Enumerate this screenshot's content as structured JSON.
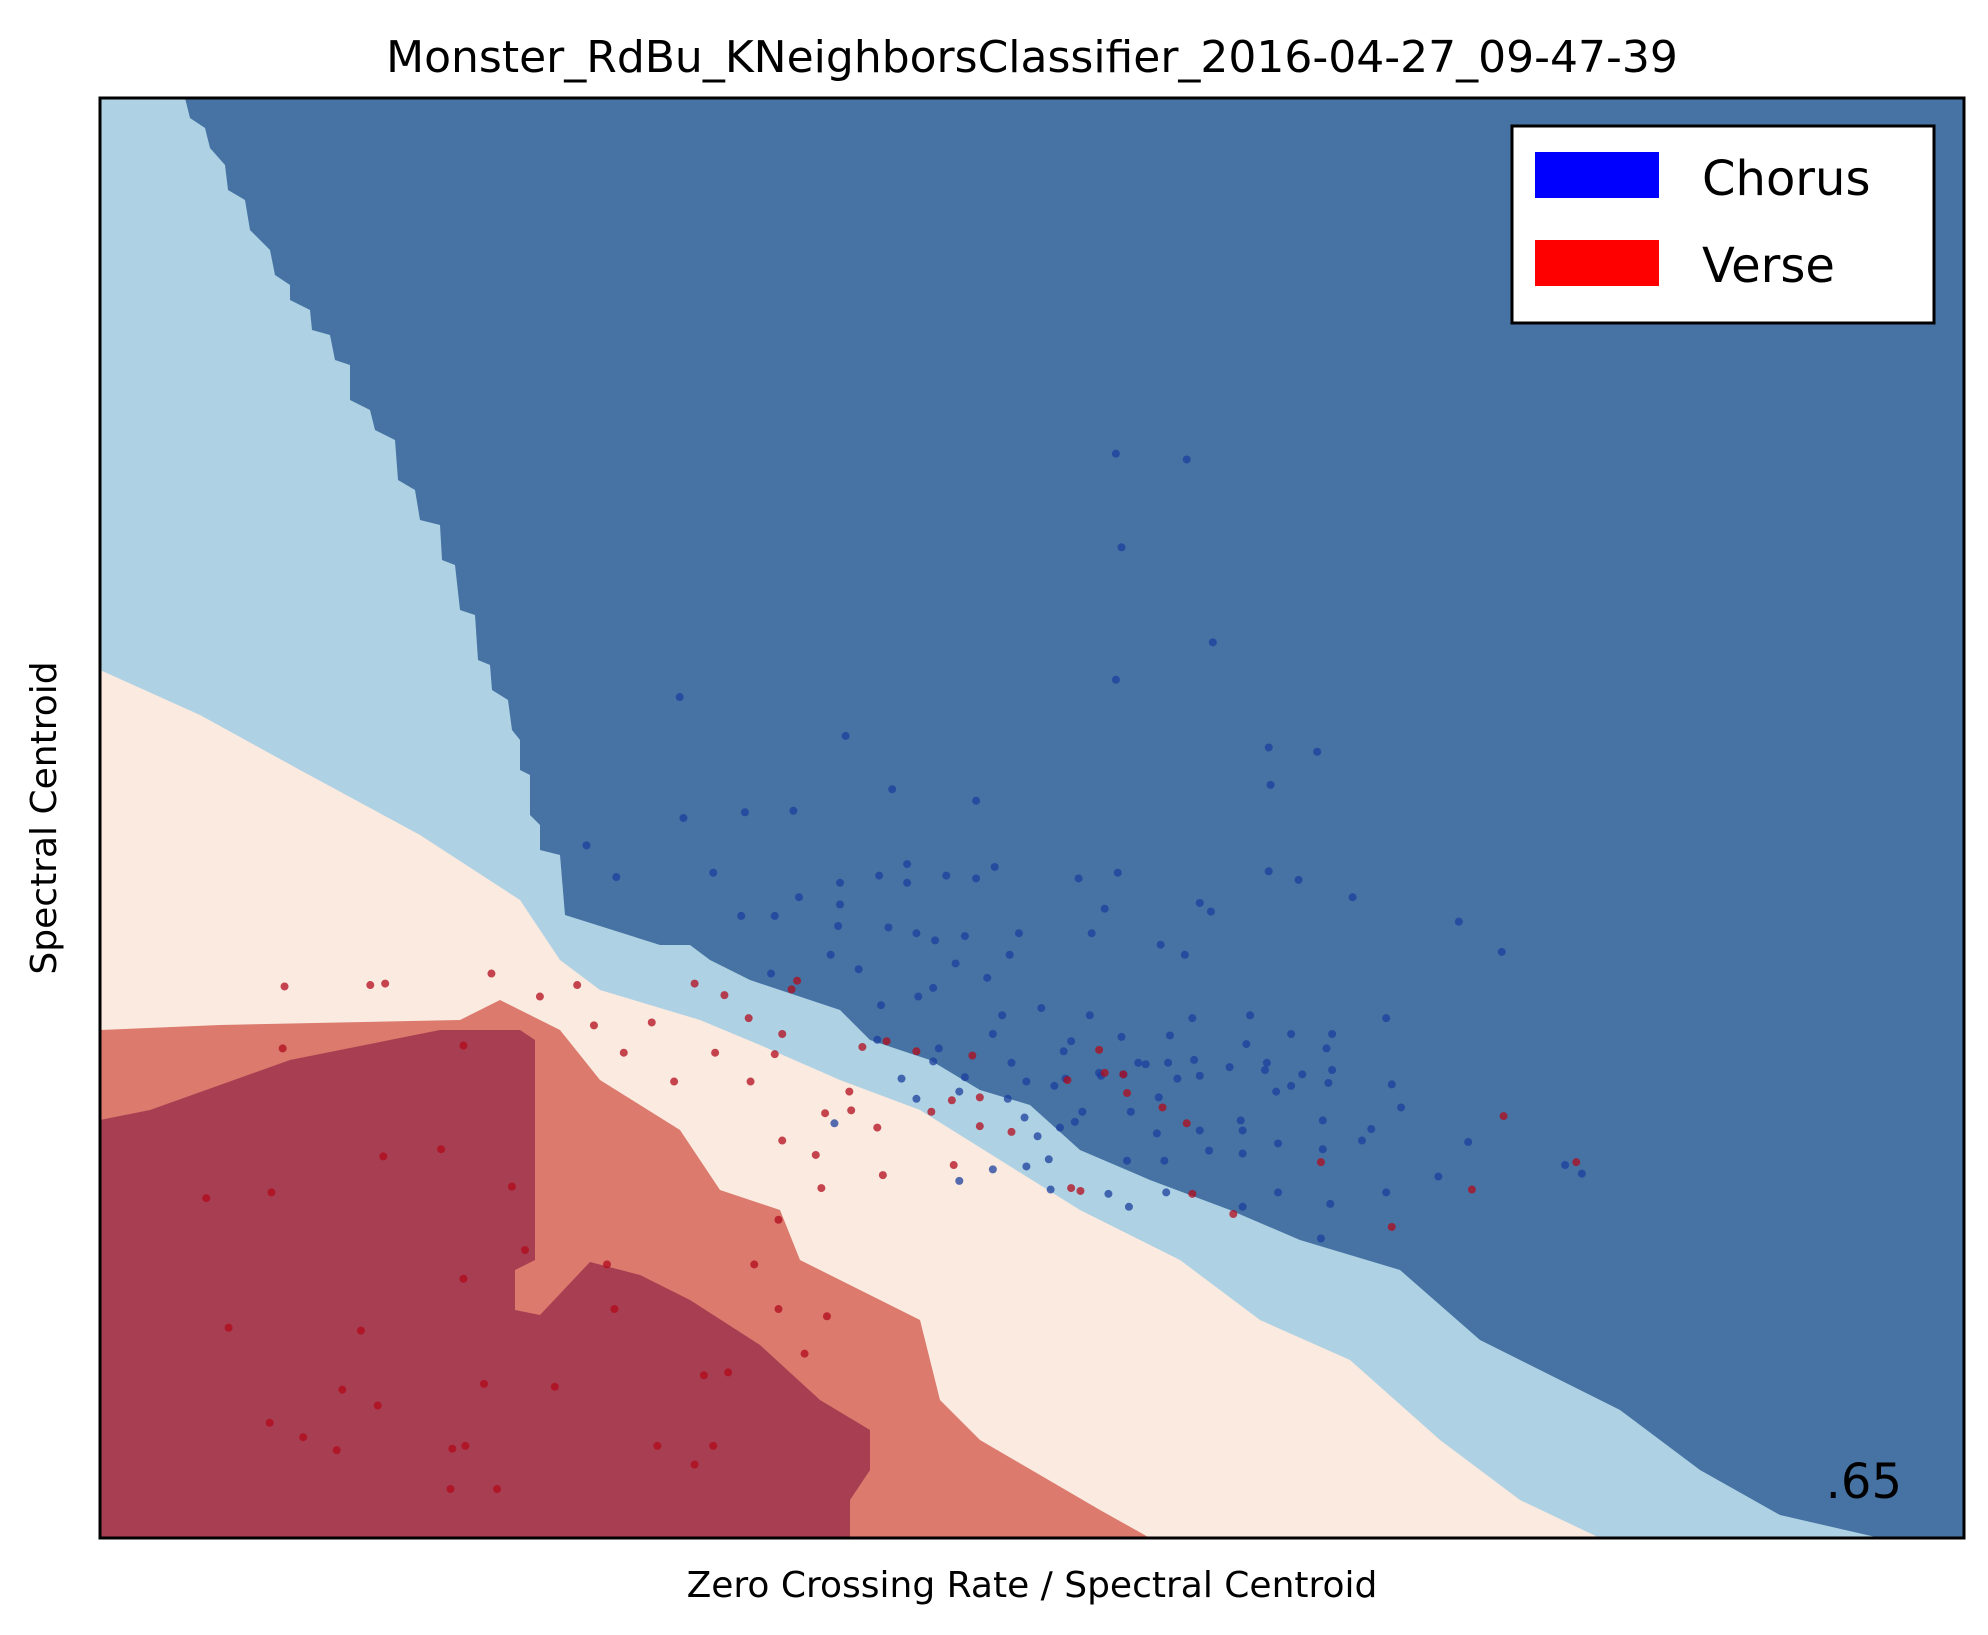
{
  "chart_data": {
    "type": "scatter",
    "title": "Monster_RdBu_KNeighborsClassifier_2016-04-27_09-47-39",
    "xlabel": "Zero Crossing Rate / Spectral Centroid",
    "ylabel": "Spectral Centroid",
    "score": ".65",
    "xlim": [
      0,
      1
    ],
    "ylim": [
      0,
      1
    ],
    "grid": false,
    "ticks": false,
    "colormap": "RdBu",
    "legend": {
      "placement": "top-right",
      "entries": [
        {
          "label": "Chorus",
          "color": "#0000ff"
        },
        {
          "label": "Verse",
          "color": "#ff0000"
        }
      ]
    },
    "decision_regions": {
      "colors": {
        "chorus_strong": "#4673a3",
        "chorus_weak": "#aed2e4",
        "verse_weak": "#fbeae0",
        "verse_mid": "#db7a6d",
        "verse_strong": "#a73e51"
      }
    },
    "series": [
      {
        "name": "Chorus",
        "color": "#1c3f9e",
        "points": [
          [
            0.545,
            0.753
          ],
          [
            0.583,
            0.749
          ],
          [
            0.548,
            0.688
          ],
          [
            0.597,
            0.622
          ],
          [
            0.545,
            0.596
          ],
          [
            0.627,
            0.549
          ],
          [
            0.653,
            0.546
          ],
          [
            0.628,
            0.523
          ],
          [
            0.311,
            0.584
          ],
          [
            0.4,
            0.557
          ],
          [
            0.425,
            0.52
          ],
          [
            0.47,
            0.512
          ],
          [
            0.372,
            0.505
          ],
          [
            0.346,
            0.504
          ],
          [
            0.313,
            0.5
          ],
          [
            0.261,
            0.481
          ],
          [
            0.277,
            0.459
          ],
          [
            0.329,
            0.462
          ],
          [
            0.397,
            0.455
          ],
          [
            0.418,
            0.46
          ],
          [
            0.433,
            0.468
          ],
          [
            0.48,
            0.466
          ],
          [
            0.47,
            0.458
          ],
          [
            0.454,
            0.46
          ],
          [
            0.433,
            0.455
          ],
          [
            0.375,
            0.445
          ],
          [
            0.397,
            0.44
          ],
          [
            0.525,
            0.458
          ],
          [
            0.546,
            0.462
          ],
          [
            0.539,
            0.437
          ],
          [
            0.59,
            0.441
          ],
          [
            0.596,
            0.435
          ],
          [
            0.627,
            0.463
          ],
          [
            0.643,
            0.457
          ],
          [
            0.672,
            0.445
          ],
          [
            0.729,
            0.428
          ],
          [
            0.752,
            0.407
          ],
          [
            0.362,
            0.432
          ],
          [
            0.396,
            0.425
          ],
          [
            0.344,
            0.432
          ],
          [
            0.423,
            0.424
          ],
          [
            0.438,
            0.42
          ],
          [
            0.448,
            0.415
          ],
          [
            0.464,
            0.418
          ],
          [
            0.493,
            0.42
          ],
          [
            0.532,
            0.42
          ],
          [
            0.569,
            0.412
          ],
          [
            0.582,
            0.405
          ],
          [
            0.488,
            0.405
          ],
          [
            0.459,
            0.399
          ],
          [
            0.407,
            0.395
          ],
          [
            0.392,
            0.405
          ],
          [
            0.36,
            0.392
          ],
          [
            0.476,
            0.389
          ],
          [
            0.447,
            0.382
          ],
          [
            0.439,
            0.376
          ],
          [
            0.419,
            0.37
          ],
          [
            0.505,
            0.368
          ],
          [
            0.484,
            0.363
          ],
          [
            0.479,
            0.35
          ],
          [
            0.531,
            0.363
          ],
          [
            0.548,
            0.348
          ],
          [
            0.574,
            0.349
          ],
          [
            0.586,
            0.361
          ],
          [
            0.617,
            0.363
          ],
          [
            0.639,
            0.35
          ],
          [
            0.661,
            0.35
          ],
          [
            0.69,
            0.361
          ],
          [
            0.549,
            0.322
          ],
          [
            0.537,
            0.321
          ],
          [
            0.568,
            0.306
          ],
          [
            0.59,
            0.321
          ],
          [
            0.625,
            0.325
          ],
          [
            0.631,
            0.31
          ],
          [
            0.659,
            0.316
          ],
          [
            0.489,
            0.33
          ],
          [
            0.497,
            0.317
          ],
          [
            0.464,
            0.32
          ],
          [
            0.447,
            0.331
          ],
          [
            0.518,
            0.319
          ],
          [
            0.613,
            0.283
          ],
          [
            0.677,
            0.276
          ],
          [
            0.645,
            0.322
          ],
          [
            0.682,
            0.284
          ],
          [
            0.693,
            0.315
          ],
          [
            0.615,
            0.343
          ],
          [
            0.626,
            0.33
          ],
          [
            0.656,
            0.29
          ],
          [
            0.521,
            0.345
          ],
          [
            0.517,
            0.338
          ],
          [
            0.557,
            0.33
          ],
          [
            0.45,
            0.34
          ],
          [
            0.417,
            0.346
          ],
          [
            0.438,
            0.305
          ],
          [
            0.461,
            0.31
          ],
          [
            0.503,
            0.279
          ],
          [
            0.496,
            0.292
          ],
          [
            0.515,
            0.285
          ],
          [
            0.527,
            0.296
          ],
          [
            0.553,
            0.296
          ],
          [
            0.595,
            0.269
          ],
          [
            0.571,
            0.262
          ],
          [
            0.551,
            0.262
          ],
          [
            0.523,
            0.289
          ],
          [
            0.567,
            0.281
          ],
          [
            0.59,
            0.283
          ],
          [
            0.698,
            0.299
          ],
          [
            0.734,
            0.275
          ],
          [
            0.656,
            0.27
          ],
          [
            0.632,
            0.274
          ],
          [
            0.612,
            0.29
          ],
          [
            0.658,
            0.34
          ],
          [
            0.479,
            0.256
          ],
          [
            0.497,
            0.258
          ],
          [
            0.461,
            0.248
          ],
          [
            0.509,
            0.263
          ],
          [
            0.541,
            0.239
          ],
          [
            0.572,
            0.24
          ],
          [
            0.552,
            0.23
          ],
          [
            0.613,
            0.23
          ],
          [
            0.632,
            0.24
          ],
          [
            0.655,
            0.208
          ],
          [
            0.69,
            0.24
          ],
          [
            0.718,
            0.251
          ],
          [
            0.786,
            0.259
          ],
          [
            0.795,
            0.253
          ],
          [
            0.639,
            0.314
          ],
          [
            0.661,
            0.325
          ],
          [
            0.512,
            0.314
          ],
          [
            0.606,
            0.327
          ],
          [
            0.587,
            0.332
          ],
          [
            0.43,
            0.319
          ],
          [
            0.487,
            0.305
          ],
          [
            0.536,
            0.323
          ],
          [
            0.561,
            0.329
          ],
          [
            0.578,
            0.319
          ],
          [
            0.573,
            0.33
          ],
          [
            0.613,
            0.267
          ],
          [
            0.66,
            0.232
          ],
          [
            0.51,
            0.242
          ],
          [
            0.394,
            0.288
          ]
        ]
      },
      {
        "name": "Verse",
        "color": "#b20b1c",
        "points": [
          [
            0.099,
            0.383
          ],
          [
            0.153,
            0.385
          ],
          [
            0.21,
            0.392
          ],
          [
            0.256,
            0.384
          ],
          [
            0.335,
            0.377
          ],
          [
            0.374,
            0.387
          ],
          [
            0.371,
            0.381
          ],
          [
            0.409,
            0.341
          ],
          [
            0.422,
            0.345
          ],
          [
            0.438,
            0.338
          ],
          [
            0.468,
            0.335
          ],
          [
            0.536,
            0.339
          ],
          [
            0.539,
            0.323
          ],
          [
            0.549,
            0.322
          ],
          [
            0.519,
            0.318
          ],
          [
            0.472,
            0.306
          ],
          [
            0.446,
            0.296
          ],
          [
            0.457,
            0.304
          ],
          [
            0.402,
            0.31
          ],
          [
            0.472,
            0.286
          ],
          [
            0.489,
            0.282
          ],
          [
            0.551,
            0.309
          ],
          [
            0.57,
            0.299
          ],
          [
            0.583,
            0.288
          ],
          [
            0.389,
            0.295
          ],
          [
            0.362,
            0.336
          ],
          [
            0.308,
            0.317
          ],
          [
            0.281,
            0.337
          ],
          [
            0.195,
            0.342
          ],
          [
            0.236,
            0.376
          ],
          [
            0.366,
            0.35
          ],
          [
            0.348,
            0.361
          ],
          [
            0.319,
            0.385
          ],
          [
            0.296,
            0.358
          ],
          [
            0.265,
            0.356
          ],
          [
            0.33,
            0.337
          ],
          [
            0.349,
            0.317
          ],
          [
            0.403,
            0.297
          ],
          [
            0.417,
            0.285
          ],
          [
            0.366,
            0.276
          ],
          [
            0.384,
            0.266
          ],
          [
            0.42,
            0.252
          ],
          [
            0.458,
            0.259
          ],
          [
            0.526,
            0.241
          ],
          [
            0.586,
            0.239
          ],
          [
            0.608,
            0.225
          ],
          [
            0.655,
            0.261
          ],
          [
            0.693,
            0.216
          ],
          [
            0.753,
            0.293
          ],
          [
            0.792,
            0.261
          ],
          [
            0.736,
            0.242
          ],
          [
            0.521,
            0.243
          ],
          [
            0.387,
            0.243
          ],
          [
            0.364,
            0.221
          ],
          [
            0.351,
            0.19
          ],
          [
            0.364,
            0.159
          ],
          [
            0.228,
            0.2
          ],
          [
            0.221,
            0.244
          ],
          [
            0.145,
            0.384
          ],
          [
            0.098,
            0.34
          ],
          [
            0.057,
            0.236
          ],
          [
            0.092,
            0.24
          ],
          [
            0.183,
            0.27
          ],
          [
            0.152,
            0.265
          ],
          [
            0.195,
            0.18
          ],
          [
            0.069,
            0.146
          ],
          [
            0.14,
            0.144
          ],
          [
            0.272,
            0.19
          ],
          [
            0.276,
            0.159
          ],
          [
            0.337,
            0.115
          ],
          [
            0.378,
            0.128
          ],
          [
            0.244,
            0.105
          ],
          [
            0.206,
            0.107
          ],
          [
            0.13,
            0.103
          ],
          [
            0.149,
            0.092
          ],
          [
            0.196,
            0.064
          ],
          [
            0.189,
            0.062
          ],
          [
            0.127,
            0.061
          ],
          [
            0.109,
            0.07
          ],
          [
            0.091,
            0.08
          ],
          [
            0.188,
            0.034
          ],
          [
            0.213,
            0.034
          ],
          [
            0.299,
            0.064
          ],
          [
            0.329,
            0.064
          ],
          [
            0.324,
            0.113
          ],
          [
            0.319,
            0.051
          ],
          [
            0.39,
            0.154
          ]
        ]
      }
    ]
  }
}
